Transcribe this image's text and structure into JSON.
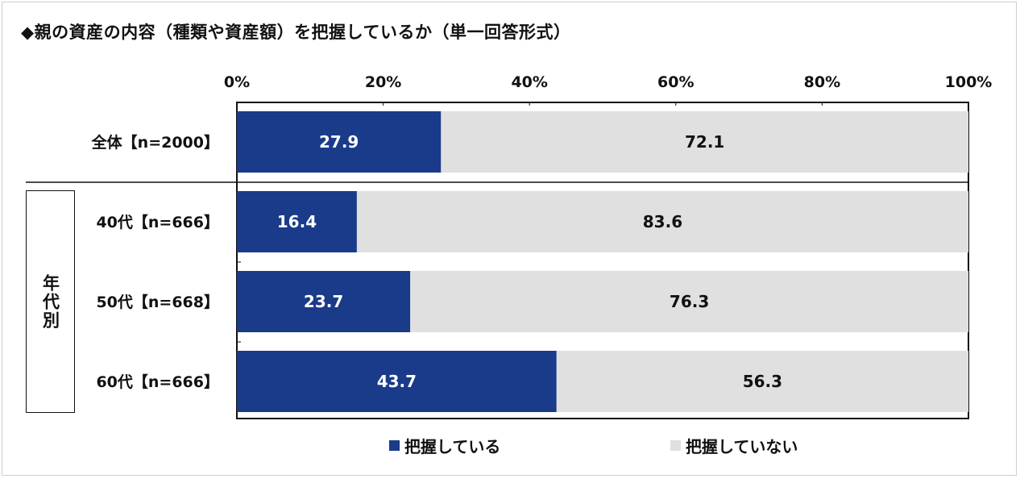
{
  "title": "◆親の資産の内容（種類や資産額）を把握しているか（単一回答形式）",
  "group_label": "年代別",
  "colors": {
    "known": "#1a3a8a",
    "unknown": "#e0e0e0"
  },
  "chart_data": {
    "type": "bar",
    "orientation": "horizontal",
    "stacked": true,
    "percent": true,
    "xlim": [
      0,
      100
    ],
    "x_ticks": [
      "0%",
      "20%",
      "40%",
      "60%",
      "80%",
      "100%"
    ],
    "categories": [
      "全体【n=2000】",
      "40代【n=666】",
      "50代【n=668】",
      "60代【n=666】"
    ],
    "series": [
      {
        "name": "把握している",
        "values": [
          27.9,
          16.4,
          23.7,
          43.7
        ]
      },
      {
        "name": "把握していない",
        "values": [
          72.1,
          83.6,
          76.3,
          56.3
        ]
      }
    ],
    "data_labels": [
      [
        "27.9",
        "16.4",
        "23.7",
        "43.7"
      ],
      [
        "72.1",
        "83.6",
        "76.3",
        "56.3"
      ]
    ],
    "legend_position": "bottom",
    "grid": false
  }
}
